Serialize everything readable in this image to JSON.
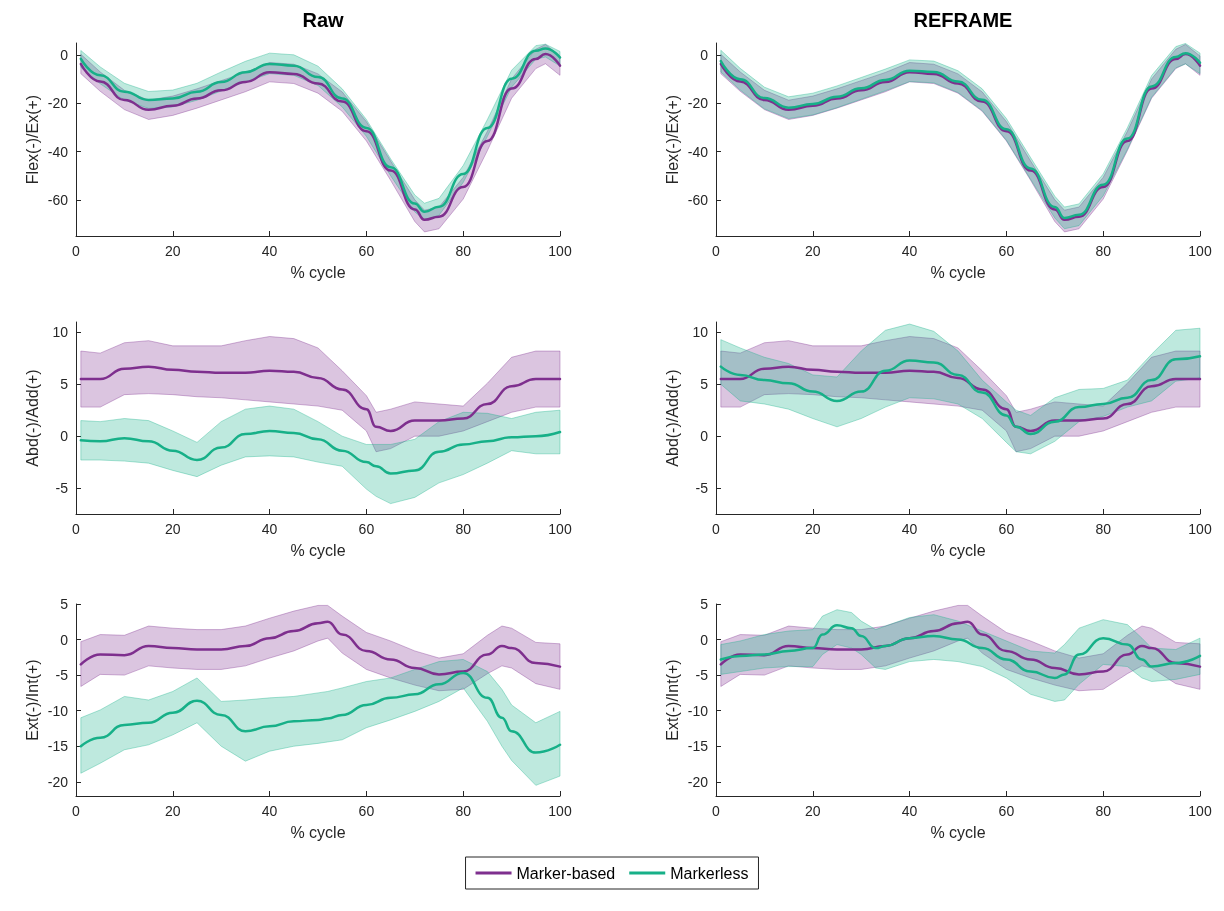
{
  "chart_data": [
    {
      "type": "line",
      "title": "Raw",
      "xlabel": "% cycle",
      "ylabel": "Flex(-)/Ex(+)",
      "xlim": [
        0,
        100
      ],
      "xticks": [
        0,
        20,
        40,
        60,
        80,
        100
      ],
      "ylim": [
        -75,
        5
      ],
      "yticks": [
        -60,
        -40,
        -20,
        0
      ],
      "legend": "bottom",
      "series": [
        {
          "name": "Marker-based",
          "color": "#7e2f8e",
          "x": [
            1,
            5,
            10,
            15,
            20,
            25,
            30,
            35,
            40,
            45,
            50,
            55,
            60,
            65,
            70,
            72,
            75,
            80,
            85,
            90,
            95,
            97,
            100
          ],
          "values": [
            -3.7,
            -11,
            -18.6,
            -22.7,
            -21,
            -18,
            -14.6,
            -11.2,
            -7.1,
            -7.8,
            -11.8,
            -19.3,
            -31.6,
            -47.9,
            -64,
            -68.3,
            -67,
            -54.7,
            -35.6,
            -13.9,
            -1.6,
            0.4,
            -4.4
          ],
          "upper": [
            0.3,
            -7,
            -14.6,
            -18.7,
            -17,
            -14,
            -10.6,
            -7.2,
            -3.1,
            -3.8,
            -7.8,
            -15.3,
            -27.6,
            -43.9,
            -60,
            -64.3,
            -63,
            -50.7,
            -31.6,
            -9.9,
            2.4,
            4.4,
            -0.4
          ],
          "lower": [
            -7.7,
            -15,
            -22.6,
            -26.7,
            -25,
            -22,
            -18.6,
            -15.2,
            -11.1,
            -11.8,
            -15.8,
            -23.3,
            -35.6,
            -51.9,
            -69,
            -73.3,
            -72,
            -59.7,
            -39.6,
            -17.9,
            -5.6,
            -3.6,
            -8.4
          ]
        },
        {
          "name": "Markerless",
          "color": "#17b088",
          "x": [
            1,
            5,
            10,
            15,
            20,
            25,
            30,
            35,
            40,
            45,
            50,
            55,
            60,
            65,
            70,
            72,
            75,
            80,
            85,
            90,
            95,
            97,
            100
          ],
          "values": [
            -1.6,
            -8.4,
            -15.2,
            -18.6,
            -18,
            -15.2,
            -11.2,
            -7.1,
            -3.7,
            -4.4,
            -9.1,
            -18,
            -30.2,
            -46.5,
            -61.5,
            -64.9,
            -62.9,
            -49.3,
            -30.2,
            -9.8,
            1.8,
            2.7,
            -1
          ],
          "upper": [
            1.9,
            -4.9,
            -11.7,
            -15.1,
            -14.5,
            -11.7,
            -7,
            -2.6,
            0.8,
            0.1,
            -4.6,
            -14,
            -26.7,
            -43,
            -58,
            -61.4,
            -59.4,
            -45.8,
            -26.7,
            -6.3,
            3.9,
            4.5,
            1.5
          ],
          "lower": [
            -5.1,
            -11.9,
            -18.7,
            -22.1,
            -21.5,
            -18.7,
            -14.9,
            -11.1,
            -7.7,
            -8.4,
            -12.6,
            -21.5,
            -33.7,
            -50,
            -65,
            -68.4,
            -66.4,
            -52.8,
            -33.7,
            -13.3,
            -1.7,
            -0.8,
            -4.5
          ]
        }
      ]
    },
    {
      "type": "line",
      "title": "REFRAME",
      "xlabel": "% cycle",
      "ylabel": "Flex(-)/Ex(+)",
      "xlim": [
        0,
        100
      ],
      "xticks": [
        0,
        20,
        40,
        60,
        80,
        100
      ],
      "ylim": [
        -75,
        5
      ],
      "yticks": [
        -60,
        -40,
        -20,
        0
      ],
      "legend": "bottom",
      "series": [
        {
          "name": "Marker-based",
          "color": "#7e2f8e",
          "x": [
            1,
            5,
            10,
            15,
            20,
            25,
            30,
            35,
            40,
            45,
            50,
            55,
            60,
            65,
            70,
            72,
            75,
            80,
            85,
            90,
            95,
            97,
            100
          ],
          "values": [
            -3.7,
            -11,
            -18.6,
            -22.7,
            -21,
            -18,
            -14.6,
            -11.2,
            -7.1,
            -7.8,
            -11.8,
            -19.3,
            -31.6,
            -47.9,
            -64,
            -68.3,
            -67,
            -54.7,
            -35.6,
            -13.9,
            -1.6,
            0.4,
            -4.4
          ],
          "upper": [
            0.3,
            -7,
            -14.6,
            -18.7,
            -17,
            -14,
            -10.6,
            -7.2,
            -3.1,
            -3.8,
            -7.8,
            -15.3,
            -27.6,
            -43.9,
            -60,
            -64.3,
            -63,
            -50.7,
            -31.6,
            -9.9,
            2.4,
            4.4,
            -0.4
          ],
          "lower": [
            -7.7,
            -15,
            -22.6,
            -26.7,
            -25,
            -22,
            -18.6,
            -15.2,
            -11.1,
            -11.8,
            -15.8,
            -23.3,
            -35.6,
            -51.9,
            -69,
            -73.3,
            -72,
            -59.7,
            -39.6,
            -17.9,
            -5.6,
            -3.6,
            -8.4
          ]
        },
        {
          "name": "Markerless",
          "color": "#17b088",
          "x": [
            1,
            5,
            10,
            15,
            20,
            25,
            30,
            35,
            40,
            45,
            50,
            55,
            60,
            65,
            70,
            72,
            75,
            80,
            85,
            90,
            95,
            97,
            100
          ],
          "values": [
            -2.5,
            -10,
            -17.8,
            -21.8,
            -20.3,
            -17.3,
            -13.8,
            -10.3,
            -6.5,
            -7,
            -11,
            -18.5,
            -30.8,
            -47,
            -63,
            -67.5,
            -66.2,
            -53.8,
            -34.6,
            -13,
            -0.8,
            0.8,
            -3.2
          ],
          "upper": [
            2,
            -5.5,
            -13.3,
            -17.3,
            -15.8,
            -12.8,
            -9.3,
            -5.8,
            -2,
            -2.5,
            -6.5,
            -14,
            -26.3,
            -42.5,
            -58.5,
            -63,
            -61.7,
            -49.3,
            -30.1,
            -8.5,
            3.5,
            4.8,
            0.8
          ],
          "lower": [
            -7,
            -14.5,
            -22.3,
            -26.3,
            -24.8,
            -21.8,
            -18.3,
            -14.8,
            -11,
            -11.5,
            -15.5,
            -23,
            -35.3,
            -51.5,
            -67.5,
            -72,
            -70.7,
            -58.3,
            -39.1,
            -17.5,
            -5.3,
            -3.7,
            -7.7
          ]
        }
      ]
    },
    {
      "type": "line",
      "xlabel": "% cycle",
      "ylabel": "Abd(-)/Add(+)",
      "xlim": [
        0,
        100
      ],
      "xticks": [
        0,
        20,
        40,
        60,
        80,
        100
      ],
      "ylim": [
        -7.5,
        11
      ],
      "yticks": [
        -5,
        0,
        5,
        10
      ],
      "legend": "bottom",
      "series": [
        {
          "name": "Marker-based",
          "color": "#7e2f8e",
          "x": [
            1,
            5,
            10,
            15,
            20,
            25,
            30,
            35,
            40,
            45,
            50,
            55,
            60,
            62,
            65,
            70,
            75,
            80,
            85,
            90,
            95,
            100
          ],
          "values": [
            5.5,
            5.5,
            6.5,
            6.7,
            6.4,
            6.2,
            6.1,
            6.1,
            6.3,
            6.2,
            5.6,
            4.5,
            2.6,
            0.9,
            0.5,
            1.5,
            1.5,
            1.7,
            3.1,
            4.8,
            5.5,
            5.5
          ],
          "upper": [
            8.2,
            8,
            9,
            9.2,
            8.7,
            8.7,
            8.7,
            9.2,
            9.6,
            9.4,
            8.5,
            6.3,
            3.9,
            2.3,
            2.6,
            3.3,
            3.1,
            2.9,
            5.1,
            7.6,
            8.2,
            8.2
          ],
          "lower": [
            2.8,
            2.8,
            4,
            4.1,
            4,
            3.8,
            3.7,
            3.5,
            3.3,
            3.1,
            2.9,
            2.5,
            0.5,
            -1.5,
            -1.2,
            0,
            0,
            0.5,
            1.4,
            2.3,
            2.8,
            2.8
          ]
        },
        {
          "name": "Markerless",
          "color": "#17b088",
          "x": [
            1,
            5,
            10,
            15,
            20,
            25,
            30,
            35,
            40,
            45,
            50,
            55,
            60,
            62,
            65,
            70,
            75,
            80,
            85,
            90,
            95,
            100
          ],
          "values": [
            -0.4,
            -0.5,
            -0.2,
            -0.5,
            -1.4,
            -2.3,
            -1.1,
            0.2,
            0.5,
            0.3,
            -0.3,
            -1.4,
            -2.5,
            -2.9,
            -3.6,
            -3.3,
            -1.5,
            -0.8,
            -0.5,
            -0.1,
            0,
            0.4
          ],
          "upper": [
            1.5,
            1.4,
            1.7,
            1.5,
            0.5,
            -0.6,
            1.4,
            2.6,
            2.9,
            2.6,
            1.4,
            0,
            -0.8,
            -0.8,
            -0.8,
            -0.3,
            1.4,
            2.3,
            2.2,
            1.7,
            2.3,
            2.5
          ],
          "lower": [
            -2.3,
            -2.3,
            -2.4,
            -2.6,
            -3.3,
            -3.9,
            -2.8,
            -2,
            -1.9,
            -2,
            -2.5,
            -2.9,
            -5.1,
            -5.8,
            -6.5,
            -5.9,
            -4.5,
            -3.7,
            -2.6,
            -1.4,
            -1.7,
            -1.7
          ]
        }
      ]
    },
    {
      "type": "line",
      "xlabel": "% cycle",
      "ylabel": "Abd(-)/Add(+)",
      "xlim": [
        0,
        100
      ],
      "xticks": [
        0,
        20,
        40,
        60,
        80,
        100
      ],
      "ylim": [
        -7.5,
        11
      ],
      "yticks": [
        -5,
        0,
        5,
        10
      ],
      "legend": "bottom",
      "series": [
        {
          "name": "Marker-based",
          "color": "#7e2f8e",
          "x": [
            1,
            5,
            10,
            15,
            20,
            25,
            30,
            35,
            40,
            45,
            50,
            55,
            60,
            62,
            65,
            70,
            75,
            80,
            85,
            90,
            95,
            100
          ],
          "values": [
            5.5,
            5.5,
            6.5,
            6.7,
            6.4,
            6.2,
            6.1,
            6.1,
            6.3,
            6.2,
            5.6,
            4.5,
            2.6,
            0.9,
            0.5,
            1.5,
            1.5,
            1.7,
            3.1,
            4.8,
            5.5,
            5.5
          ],
          "upper": [
            8.2,
            8,
            9,
            9.2,
            8.7,
            8.7,
            8.7,
            9.2,
            9.6,
            9.4,
            8.5,
            6.3,
            3.9,
            2.3,
            2.6,
            3.3,
            3.1,
            2.9,
            5.1,
            7.6,
            8.2,
            8.2
          ],
          "lower": [
            2.8,
            2.8,
            4,
            4.1,
            4,
            3.8,
            3.7,
            3.5,
            3.3,
            3.1,
            2.9,
            2.5,
            0.5,
            -1.5,
            -1.2,
            0,
            0,
            0.5,
            1.4,
            2.3,
            2.8,
            2.8
          ]
        },
        {
          "name": "Markerless",
          "color": "#17b088",
          "x": [
            1,
            5,
            10,
            15,
            20,
            25,
            30,
            35,
            40,
            45,
            50,
            55,
            60,
            62,
            65,
            70,
            75,
            80,
            85,
            90,
            95,
            100
          ],
          "values": [
            6.7,
            5.9,
            5.4,
            5.1,
            4.3,
            3.4,
            4.3,
            6.3,
            7.3,
            7.1,
            5.9,
            4.2,
            2,
            0.9,
            0.2,
            1.4,
            2.8,
            3.1,
            3.7,
            5.4,
            7.4,
            7.7
          ],
          "upper": [
            9.3,
            8.5,
            7.6,
            7,
            5.9,
            5.7,
            8.2,
            10.2,
            10.8,
            10.1,
            8.2,
            5.4,
            3.3,
            2.5,
            2,
            3.7,
            4.5,
            4.6,
            5.4,
            7.9,
            10.2,
            10.4
          ],
          "lower": [
            5,
            3.4,
            3.1,
            2.6,
            1.7,
            0.9,
            1.7,
            2.8,
            3.7,
            3.6,
            3.1,
            1.7,
            -0.6,
            -1.5,
            -1.7,
            -0.5,
            1.4,
            1.9,
            2.8,
            3.4,
            5.3,
            5.6
          ]
        }
      ]
    },
    {
      "type": "line",
      "xlabel": "% cycle",
      "ylabel": "Ext(-)/Int(+)",
      "xlim": [
        0,
        100
      ],
      "xticks": [
        0,
        20,
        40,
        60,
        80,
        100
      ],
      "ylim": [
        -22,
        5
      ],
      "yticks": [
        -20,
        -15,
        -10,
        -5,
        0,
        5
      ],
      "legend": "bottom",
      "series": [
        {
          "name": "Marker-based",
          "color": "#7e2f8e",
          "x": [
            1,
            5,
            10,
            15,
            20,
            25,
            30,
            35,
            40,
            45,
            50,
            52,
            55,
            60,
            65,
            70,
            75,
            80,
            85,
            88,
            90,
            95,
            100
          ],
          "values": [
            -3.5,
            -2.1,
            -2.2,
            -0.9,
            -1.2,
            -1.4,
            -1.4,
            -0.9,
            0.2,
            1.2,
            2.3,
            2.5,
            0.7,
            -1.6,
            -2.8,
            -4,
            -4.9,
            -4.5,
            -2.1,
            -0.9,
            -1.2,
            -3.3,
            -3.8
          ],
          "upper": [
            -0.3,
            0.7,
            0.6,
            1.9,
            1.6,
            1.4,
            1.4,
            1.9,
            3,
            4,
            4.8,
            4.8,
            3.3,
            1,
            -0.2,
            -1.6,
            -2.6,
            -2,
            0.6,
            1.9,
            1.6,
            -0.4,
            -0.6
          ],
          "lower": [
            -6.6,
            -4.9,
            -5,
            -3.7,
            -4,
            -4.2,
            -4.2,
            -3.7,
            -2.6,
            -1.6,
            -0.2,
            0.2,
            -1.9,
            -4.2,
            -5.4,
            -6.4,
            -7.2,
            -7,
            -4.8,
            -3.7,
            -4,
            -6.2,
            -7
          ]
        },
        {
          "name": "Markerless",
          "color": "#17b088",
          "x": [
            1,
            5,
            10,
            15,
            20,
            25,
            30,
            35,
            40,
            45,
            50,
            52,
            55,
            60,
            65,
            70,
            75,
            80,
            85,
            88,
            90,
            95,
            100
          ],
          "values": [
            -15,
            -13.8,
            -12,
            -11.7,
            -10.3,
            -8.6,
            -10.6,
            -12.9,
            -12.2,
            -11.5,
            -11.3,
            -11.1,
            -10.6,
            -9.2,
            -8.2,
            -7.7,
            -6.3,
            -4.7,
            -8.2,
            -11,
            -12.9,
            -15.9,
            -14.8
          ],
          "upper": [
            -11,
            -9.9,
            -8,
            -8.5,
            -7.3,
            -5.4,
            -8.7,
            -8.5,
            -8.2,
            -8,
            -7.5,
            -7.3,
            -6.8,
            -5.9,
            -5.4,
            -4.2,
            -3.1,
            -2.8,
            -4.5,
            -7,
            -9.2,
            -11.7,
            -10.1
          ],
          "lower": [
            -18.8,
            -17.4,
            -15.5,
            -14.8,
            -13.4,
            -11.7,
            -15,
            -17.1,
            -15.7,
            -15,
            -14.6,
            -14.4,
            -14.1,
            -12.4,
            -11.3,
            -10.1,
            -8.7,
            -6.8,
            -11.5,
            -15,
            -17,
            -20.5,
            -19.2
          ]
        }
      ]
    },
    {
      "type": "line",
      "xlabel": "% cycle",
      "ylabel": "Ext(-)/Int(+)",
      "xlim": [
        0,
        100
      ],
      "xticks": [
        0,
        20,
        40,
        60,
        80,
        100
      ],
      "ylim": [
        -22,
        5
      ],
      "yticks": [
        -20,
        -15,
        -10,
        -5,
        0,
        5
      ],
      "legend": "bottom",
      "series": [
        {
          "name": "Marker-based",
          "color": "#7e2f8e",
          "x": [
            1,
            5,
            10,
            15,
            20,
            25,
            30,
            35,
            40,
            45,
            50,
            52,
            55,
            60,
            65,
            70,
            75,
            80,
            85,
            88,
            90,
            95,
            100
          ],
          "values": [
            -3.5,
            -2.1,
            -2.2,
            -0.9,
            -1.2,
            -1.4,
            -1.4,
            -0.9,
            0.2,
            1.2,
            2.3,
            2.5,
            0.7,
            -1.6,
            -2.8,
            -4,
            -4.9,
            -4.5,
            -2.1,
            -0.9,
            -1.2,
            -3.3,
            -3.8
          ],
          "upper": [
            -0.3,
            0.7,
            0.6,
            1.9,
            1.6,
            1.4,
            1.4,
            1.9,
            3,
            4,
            4.8,
            4.8,
            3.3,
            1,
            -0.2,
            -1.6,
            -2.6,
            -2,
            0.6,
            1.9,
            1.6,
            -0.4,
            -0.6
          ],
          "lower": [
            -6.6,
            -4.9,
            -5,
            -3.7,
            -4,
            -4.2,
            -4.2,
            -3.7,
            -2.6,
            -1.6,
            -0.2,
            0.2,
            -1.9,
            -4.2,
            -5.4,
            -6.4,
            -7.2,
            -7,
            -4.8,
            -3.7,
            -4,
            -6.2,
            -7
          ]
        },
        {
          "name": "Markerless",
          "color": "#17b088",
          "x": [
            1,
            5,
            10,
            15,
            20,
            22,
            25,
            28,
            30,
            33,
            35,
            40,
            45,
            50,
            55,
            60,
            65,
            70,
            72,
            75,
            80,
            85,
            88,
            90,
            95,
            100
          ],
          "values": [
            -2.8,
            -2.3,
            -2.1,
            -1.6,
            -1.2,
            0.7,
            2,
            1.6,
            0.5,
            -1.2,
            -0.9,
            0.2,
            0.5,
            0,
            -1.2,
            -2.8,
            -4.5,
            -5.4,
            -4.9,
            -2.1,
            0.2,
            -0.7,
            -2.8,
            -3.8,
            -3.3,
            -2.3
          ],
          "upper": [
            -0.7,
            -0.2,
            0.7,
            1.2,
            1.4,
            3.3,
            4.2,
            3.8,
            2.6,
            1.4,
            1.9,
            3.1,
            3.5,
            2.6,
            1.2,
            -0.2,
            -1.6,
            -1.9,
            -0.7,
            1.6,
            2.8,
            2.1,
            0.2,
            -1.2,
            -1.4,
            0.2
          ],
          "lower": [
            -4.9,
            -4.5,
            -4,
            -3.8,
            -3.8,
            -2.1,
            -0.7,
            -1.2,
            -2.1,
            -4,
            -4.2,
            -3.1,
            -2.8,
            -3.1,
            -3.8,
            -5.4,
            -7.7,
            -8.7,
            -8.5,
            -6.3,
            -3.5,
            -3.8,
            -5.4,
            -5.9,
            -5.6,
            -4.9
          ]
        }
      ]
    }
  ]
}
